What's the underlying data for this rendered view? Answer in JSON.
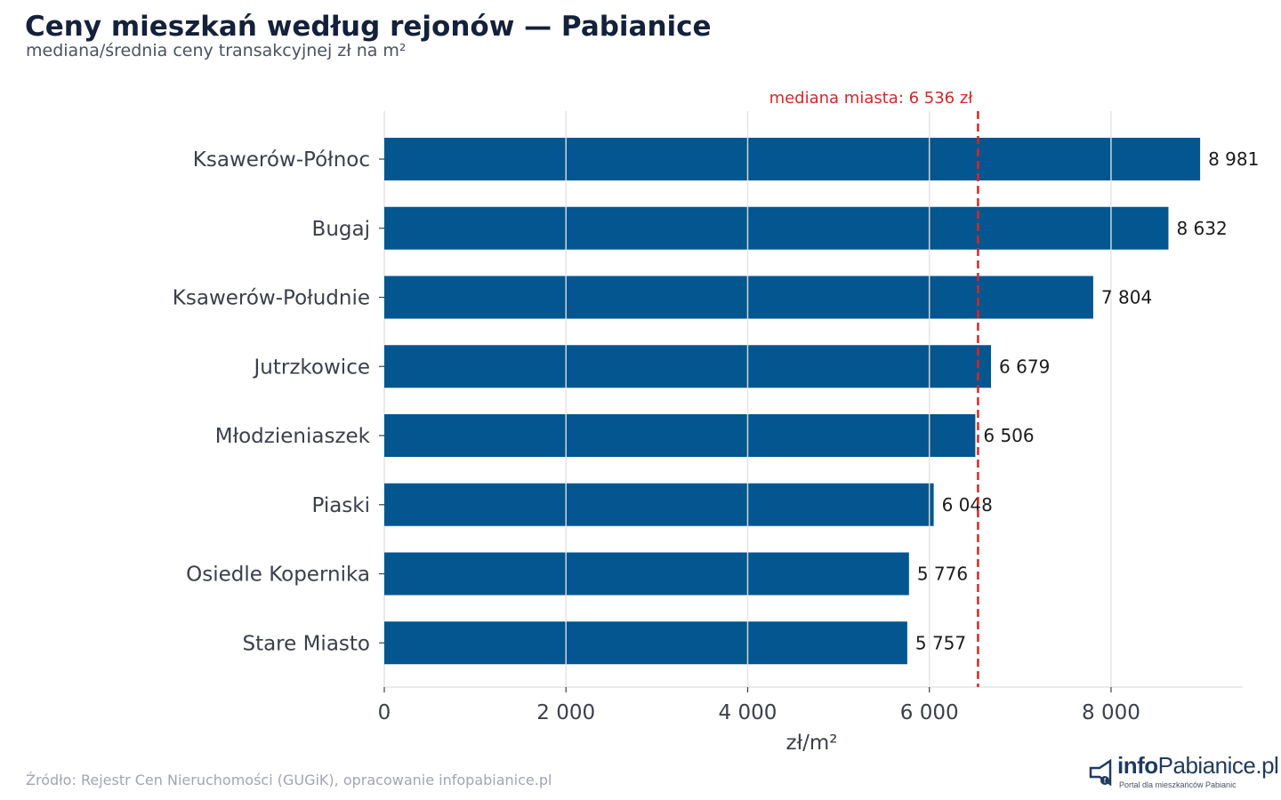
{
  "title": "Ceny mieszkań według rejonów — Pabianice",
  "subtitle": "mediana/średnia ceny transakcyjnej zł na m²",
  "source": "Źródło: Rejestr Cen Nieruchomości (GUGiK), opracowanie infopabianice.pl",
  "logo": {
    "main": "info",
    "brand": "Pabianice.pl",
    "tagline": "Portal dla mieszkańców Pabianic"
  },
  "colors": {
    "bar": "#03568f",
    "reference": "#d62728",
    "grid": "#e3e3e3"
  },
  "chart_data": {
    "type": "bar",
    "orientation": "horizontal",
    "title": "Ceny mieszkań według rejonów — Pabianice",
    "subtitle": "mediana/średnia ceny transakcyjnej zł na m²",
    "xlabel": "zł/m²",
    "ylabel": "",
    "xlim": [
      0,
      9450
    ],
    "xticks": [
      0,
      2000,
      4000,
      6000,
      8000
    ],
    "xtick_labels": [
      "0",
      "2 000",
      "4 000",
      "6 000",
      "8 000"
    ],
    "grid": "vertical",
    "categories": [
      "Ksawerów-Północ",
      "Bugaj",
      "Ksawerów-Południe",
      "Jutrzkowice",
      "Młodzieniaszek",
      "Piaski",
      "Osiedle Kopernika",
      "Stare Miasto"
    ],
    "values": [
      8981,
      8632,
      7804,
      6679,
      6506,
      6048,
      5776,
      5757
    ],
    "value_labels": [
      "8 981",
      "8 632",
      "7 804",
      "6 679",
      "6 506",
      "6 048",
      "5 776",
      "5 757"
    ],
    "reference_line": {
      "value": 6536,
      "label": "mediana miasta: 6 536 zł",
      "style": "dashed"
    }
  }
}
